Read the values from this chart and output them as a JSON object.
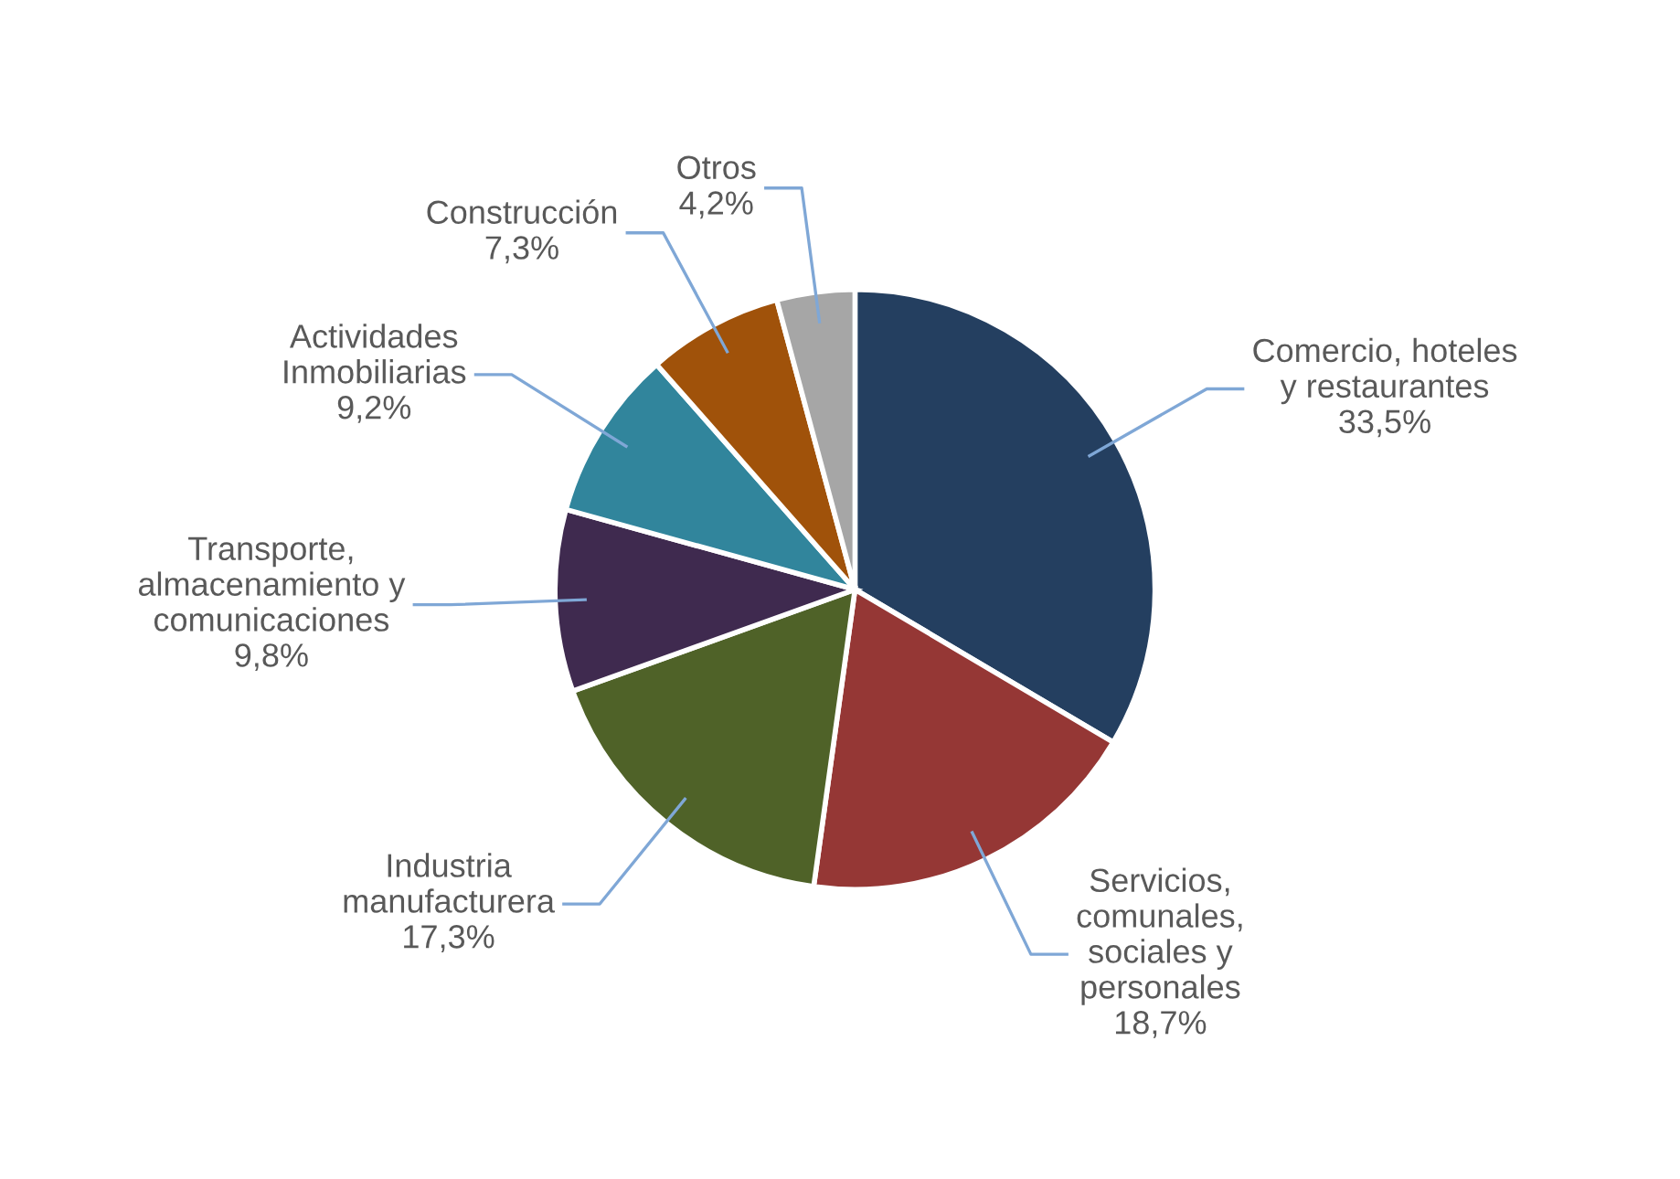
{
  "chart_data": {
    "type": "pie",
    "categories": [
      "Comercio, hoteles\ny restaurantes",
      "Servicios,\ncomunales,\nsociales y\npersonales",
      "Industria\nmanufacturera",
      "Transporte,\nalmacenamiento y\ncomunicaciones",
      "Actividades\nInmobiliarias",
      "Construcción",
      "Otros"
    ],
    "values": [
      33.5,
      18.7,
      17.3,
      9.8,
      9.2,
      7.3,
      4.2
    ],
    "value_labels": [
      "33,5%",
      "18,7%",
      "17,3%",
      "9,8%",
      "9,2%",
      "7,3%",
      "4,2%"
    ],
    "colors": [
      "#243f60",
      "#953735",
      "#4f6228",
      "#3f2a4f",
      "#31859c",
      "#a0520a",
      "#a6a6a6"
    ],
    "legend": false
  }
}
